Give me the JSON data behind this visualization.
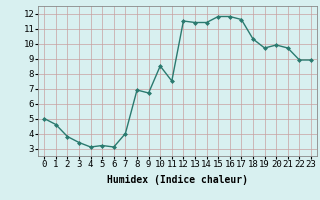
{
  "x": [
    0,
    1,
    2,
    3,
    4,
    5,
    6,
    7,
    8,
    9,
    10,
    11,
    12,
    13,
    14,
    15,
    16,
    17,
    18,
    19,
    20,
    21,
    22,
    23
  ],
  "y": [
    5.0,
    4.6,
    3.8,
    3.4,
    3.1,
    3.2,
    3.1,
    4.0,
    6.9,
    6.7,
    8.5,
    7.5,
    11.5,
    11.4,
    11.4,
    11.8,
    11.8,
    11.6,
    10.3,
    9.7,
    9.9,
    9.7,
    8.9,
    8.9
  ],
  "line_color": "#2a7a6f",
  "marker": "D",
  "marker_size": 2.0,
  "bg_color": "#d8f0f0",
  "grid_color": "#c8a0a0",
  "xlabel": "Humidex (Indice chaleur)",
  "xlim": [
    -0.5,
    23.5
  ],
  "ylim": [
    2.5,
    12.5
  ],
  "yticks": [
    3,
    4,
    5,
    6,
    7,
    8,
    9,
    10,
    11,
    12
  ],
  "xticks": [
    0,
    1,
    2,
    3,
    4,
    5,
    6,
    7,
    8,
    9,
    10,
    11,
    12,
    13,
    14,
    15,
    16,
    17,
    18,
    19,
    20,
    21,
    22,
    23
  ],
  "xlabel_fontsize": 7,
  "tick_fontsize": 6.5,
  "line_width": 1.0,
  "spine_color": "#888888",
  "label_color": "#000000"
}
